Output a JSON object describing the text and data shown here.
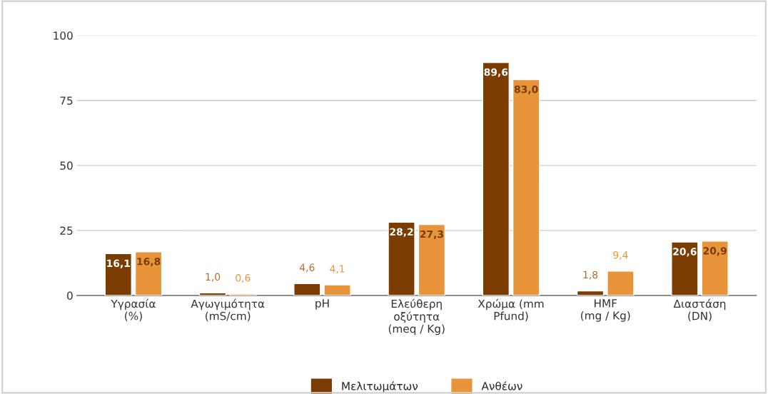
{
  "chart_data": {
    "type": "bar",
    "categories": [
      "Υγρασία\n(%)",
      "Αγωγιμότητα\n(mS/cm)",
      "pH",
      "Ελεύθερη\nοξύτητα\n(meq / Kg)",
      "Χρώμα (mm\nPfund)",
      "HMF\n(mg / Kg)",
      "Διαστάση\n(DN)"
    ],
    "series": [
      {
        "name": "Μελιτωμάτων",
        "color": "#7b3c02",
        "values": [
          16.1,
          1.0,
          4.6,
          28.2,
          89.6,
          1.8,
          20.6
        ],
        "value_labels": [
          "16,1",
          "1,0",
          "4,6",
          "28,2",
          "89,6",
          "1,8",
          "20,6"
        ]
      },
      {
        "name": "Ανθέων",
        "color": "#e8943a",
        "values": [
          16.8,
          0.6,
          4.1,
          27.3,
          83.0,
          9.4,
          20.9
        ],
        "value_labels": [
          "16,8",
          "0,6",
          "4,1",
          "27,3",
          "83,0",
          "9,4",
          "20,9"
        ]
      }
    ],
    "ylim": [
      0,
      100
    ],
    "yticks": [
      0,
      25,
      50,
      75,
      100
    ],
    "grid": "y",
    "legend": "bottom"
  }
}
